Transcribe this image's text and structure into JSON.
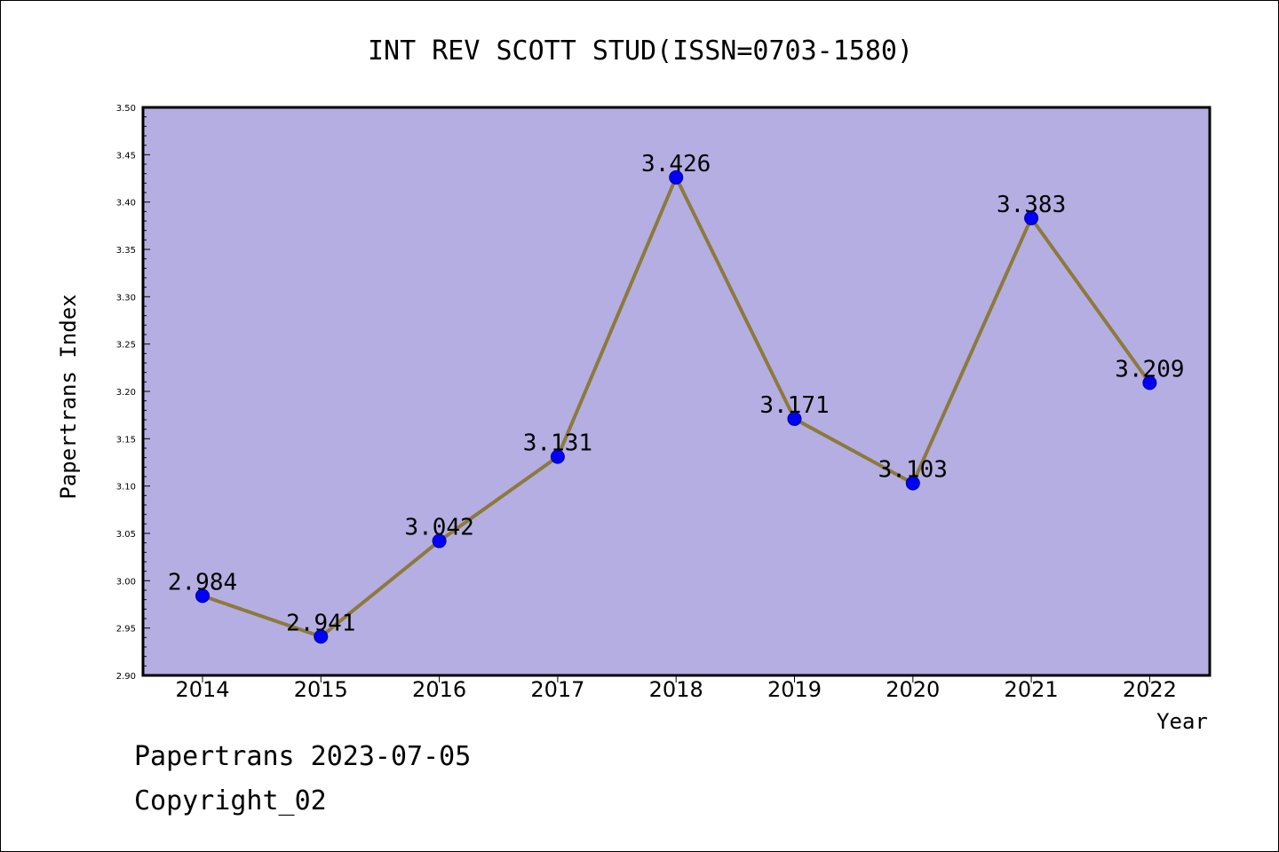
{
  "footer": {
    "line1": "Papertrans 2023-07-05",
    "line2": "Copyright_02"
  },
  "colors": {
    "plot_bg": "#b5aee2",
    "line": "#8c7a3c",
    "marker": "#0000ff"
  },
  "chart_data": {
    "type": "line",
    "title": "INT REV SCOTT STUD(ISSN=0703-1580)",
    "xlabel": "Year",
    "ylabel": "Papertrans Index",
    "categories": [
      "2014",
      "2015",
      "2016",
      "2017",
      "2018",
      "2019",
      "2020",
      "2021",
      "2022"
    ],
    "values": [
      2.984,
      2.941,
      3.042,
      3.131,
      3.426,
      3.171,
      3.103,
      3.383,
      3.209
    ],
    "data_labels": [
      "2.984",
      "2.941",
      "3.042",
      "3.131",
      "3.426",
      "3.171",
      "3.103",
      "3.383",
      "3.209"
    ],
    "ylim": [
      2.9,
      3.5
    ],
    "yticks": [
      "2.90",
      "2.95",
      "3.00",
      "3.05",
      "3.10",
      "3.15",
      "3.20",
      "3.25",
      "3.30",
      "3.35",
      "3.40",
      "3.45",
      "3.50"
    ],
    "grid": false
  }
}
